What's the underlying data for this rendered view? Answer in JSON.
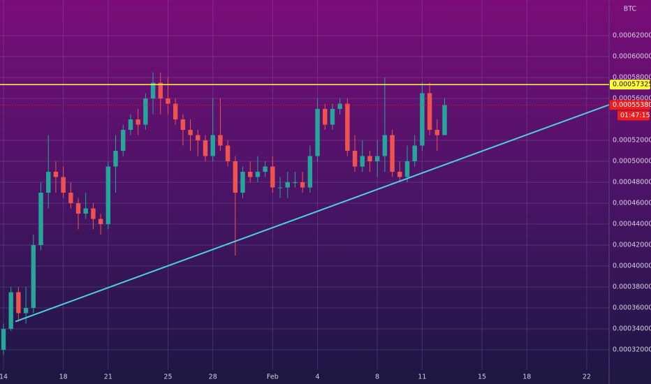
{
  "chart_data": {
    "type": "candlestick",
    "unit_label": "BTC",
    "categories": [
      "14",
      null,
      null,
      null,
      null,
      null,
      null,
      null,
      "18",
      null,
      null,
      null,
      null,
      null,
      "21",
      null,
      null,
      null,
      null,
      null,
      null,
      null,
      "25",
      null,
      null,
      null,
      null,
      null,
      "28",
      null,
      null,
      null,
      null,
      null,
      null,
      null,
      "Feb",
      null,
      null,
      null,
      null,
      null,
      "4",
      null,
      null,
      null,
      null,
      null,
      null,
      null,
      "8",
      null,
      null,
      null,
      null,
      null,
      "11",
      null,
      null,
      null,
      null,
      null,
      null,
      null,
      "15",
      null,
      null,
      null,
      null,
      null,
      "18",
      null,
      null,
      null,
      null,
      null,
      null,
      null,
      "22",
      null,
      null,
      null
    ],
    "open": [
      0.00032,
      0.00034,
      0.000375,
      0.000355,
      0.00036,
      0.00042,
      0.00047,
      0.00049,
      0.000485,
      0.00047,
      0.00046,
      0.00045,
      0.000455,
      0.000445,
      0.00044,
      0.000495,
      0.00051,
      0.00053,
      0.00054,
      0.000535,
      0.00056,
      0.000575,
      0.00056,
      0.000555,
      0.00054,
      0.00053,
      0.000525,
      0.00052,
      0.000505,
      0.000525,
      0.000515,
      0.0005,
      0.00047,
      0.00049,
      0.000485,
      0.00049,
      0.000495,
      0.000475,
      0.000475,
      0.00048,
      0.00048,
      0.000475,
      0.000505,
      0.00055,
      0.000535,
      0.00055,
      0.000555,
      0.00051,
      0.000495,
      0.000505,
      0.0005,
      0.000505,
      0.000525,
      0.00049,
      0.000485,
      0.0005,
      0.000515,
      0.000565,
      0.00053,
      0.000525,
      null,
      null,
      null,
      null,
      null,
      null,
      null,
      null,
      null,
      null,
      null,
      null,
      null,
      null,
      null,
      null,
      null,
      null,
      null,
      null,
      null,
      null
    ],
    "high": [
      0.000345,
      0.00038,
      0.00038,
      0.00038,
      0.00043,
      0.00048,
      0.000525,
      0.0005,
      0.000495,
      0.00048,
      0.000465,
      0.00047,
      0.00046,
      0.00045,
      0.0005,
      0.000525,
      0.000535,
      0.000545,
      0.00055,
      0.000565,
      0.000585,
      0.000585,
      0.00058,
      0.00056,
      0.000545,
      0.00054,
      0.00053,
      0.000525,
      0.00056,
      0.00056,
      0.00052,
      0.000505,
      0.000495,
      0.0005,
      0.000505,
      0.0005,
      0.000505,
      0.000485,
      0.00049,
      0.00049,
      0.00049,
      0.000515,
      0.00056,
      0.000555,
      0.000555,
      0.00056,
      0.00056,
      0.000525,
      0.00052,
      0.00051,
      0.00052,
      0.00058,
      0.00053,
      0.0005,
      0.000515,
      0.000525,
      0.000575,
      0.000575,
      0.00054,
      0.00056,
      null,
      null,
      null,
      null,
      null,
      null,
      null,
      null,
      null,
      null,
      null,
      null,
      null,
      null,
      null,
      null,
      null,
      null,
      null,
      null,
      null,
      null
    ],
    "low": [
      0.000315,
      0.000338,
      0.000347,
      0.000345,
      0.000355,
      0.000415,
      0.000455,
      0.00047,
      0.000465,
      0.000455,
      0.000435,
      0.000445,
      0.000435,
      0.00043,
      0.000435,
      0.00047,
      0.000505,
      0.000525,
      0.000525,
      0.00053,
      0.000545,
      0.000545,
      0.000545,
      0.000535,
      0.000515,
      0.00051,
      0.000505,
      0.0005,
      0.0005,
      0.00051,
      0.000495,
      0.00041,
      0.000465,
      0.00048,
      0.00048,
      0.000485,
      0.00047,
      0.000465,
      0.000465,
      0.000475,
      0.00047,
      0.00047,
      0.0005,
      0.00053,
      0.00053,
      0.000545,
      0.000505,
      0.00049,
      0.00049,
      0.00049,
      0.000485,
      0.00049,
      0.000485,
      0.00048,
      0.00048,
      0.000495,
      0.00051,
      0.000525,
      0.00051,
      0.000525,
      null,
      null,
      null,
      null,
      null,
      null,
      null,
      null,
      null,
      null,
      null,
      null,
      null,
      null,
      null,
      null,
      null,
      null,
      null,
      null,
      null,
      null
    ],
    "close": [
      0.00034,
      0.000375,
      0.000355,
      0.00036,
      0.00042,
      0.00047,
      0.00049,
      0.000485,
      0.00047,
      0.00046,
      0.00045,
      0.000455,
      0.000445,
      0.00044,
      0.000495,
      0.00051,
      0.00053,
      0.00054,
      0.000535,
      0.00056,
      0.000575,
      0.00056,
      0.000555,
      0.00054,
      0.00053,
      0.000525,
      0.00052,
      0.000505,
      0.000525,
      0.000515,
      0.0005,
      0.00047,
      0.00049,
      0.000485,
      0.00049,
      0.000495,
      0.000475,
      0.000475,
      0.00048,
      0.00048,
      0.000475,
      0.000505,
      0.00055,
      0.000535,
      0.00055,
      0.000555,
      0.00051,
      0.000495,
      0.000505,
      0.0005,
      0.000505,
      0.000525,
      0.00049,
      0.000485,
      0.0005,
      0.000515,
      0.000565,
      0.00053,
      0.000525,
      0.0005538,
      null,
      null,
      null,
      null,
      null,
      null,
      null,
      null,
      null,
      null,
      null,
      null,
      null,
      null,
      null,
      null,
      null,
      null,
      null,
      null,
      null,
      null
    ],
    "up_color": "#26a69a",
    "down_color": "#ef5350",
    "ylim": [
      0.0003007,
      0.000654
    ],
    "yticks": [
      {
        "value": 0.00032,
        "label": "0.00032000"
      },
      {
        "value": 0.00034,
        "label": "0.00034000"
      },
      {
        "value": 0.00036,
        "label": "0.00036000"
      },
      {
        "value": 0.00038,
        "label": "0.00038000"
      },
      {
        "value": 0.0004,
        "label": "0.00040000"
      },
      {
        "value": 0.00042,
        "label": "0.00042000"
      },
      {
        "value": 0.00044,
        "label": "0.00044000"
      },
      {
        "value": 0.00046,
        "label": "0.00046000"
      },
      {
        "value": 0.00048,
        "label": "0.00048000"
      },
      {
        "value": 0.0005,
        "label": "0.00050000"
      },
      {
        "value": 0.00052,
        "label": "0.00052000"
      },
      {
        "value": 0.00056,
        "label": "0.00056000"
      },
      {
        "value": 0.00058,
        "label": "0.00058000"
      },
      {
        "value": 0.0006,
        "label": "0.00060000"
      },
      {
        "value": 0.00062,
        "label": "0.00062000"
      }
    ],
    "grid": true,
    "resistance": {
      "value": 0.00057325,
      "label": "0.00057325",
      "color": "#ffff3b"
    },
    "trendline": {
      "x": [
        1.6,
        81
      ],
      "values": [
        0.000347,
        0.000554
      ],
      "color": "#4dd0e1"
    },
    "last_price": {
      "value": 0.0005538,
      "label": "0.00055380",
      "countdown": "01:47:15",
      "color": "#f01b1b"
    }
  }
}
